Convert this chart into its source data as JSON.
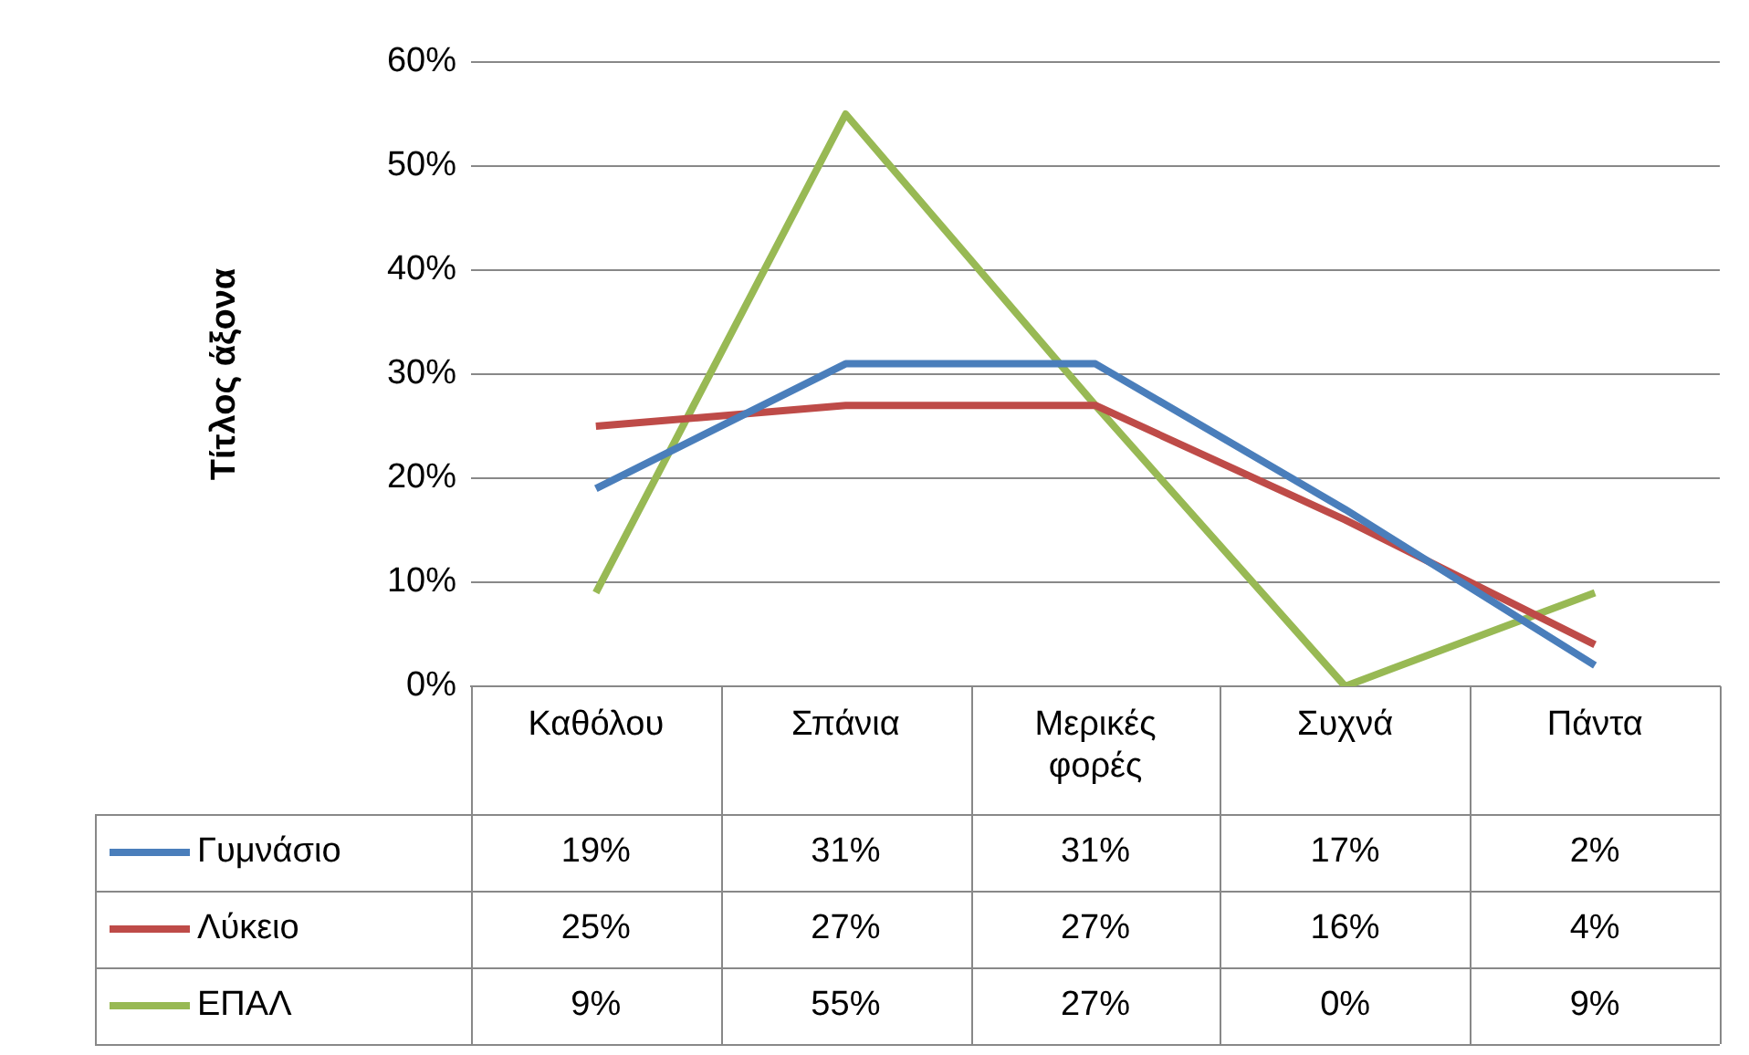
{
  "chart_data": {
    "type": "line",
    "ylabel": "Τίτλος άξονα",
    "categories": [
      "Καθόλου",
      "Σπάνια",
      "Μερικές φορές",
      "Συχνά",
      "Πάντα"
    ],
    "series": [
      {
        "name": "Γυμνάσιο",
        "color": "#4a7ebb",
        "values": [
          19,
          31,
          31,
          17,
          2
        ],
        "value_labels": [
          "19%",
          "31%",
          "31%",
          "17%",
          "2%"
        ]
      },
      {
        "name": "Λύκειο",
        "color": "#be4b48",
        "values": [
          25,
          27,
          27,
          16,
          4
        ],
        "value_labels": [
          "25%",
          "27%",
          "27%",
          "16%",
          "4%"
        ]
      },
      {
        "name": "ΕΠΑΛ",
        "color": "#98b954",
        "values": [
          9,
          55,
          27,
          0,
          9
        ],
        "value_labels": [
          "9%",
          "55%",
          "27%",
          "0%",
          "9%"
        ]
      }
    ],
    "ylim": [
      0,
      60
    ],
    "yticks": [
      {
        "value": 0,
        "label": "0%"
      },
      {
        "value": 10,
        "label": "10%"
      },
      {
        "value": 20,
        "label": "20%"
      },
      {
        "value": 30,
        "label": "30%"
      },
      {
        "value": 40,
        "label": "40%"
      },
      {
        "value": 50,
        "label": "50%"
      },
      {
        "value": 60,
        "label": "60%"
      }
    ],
    "grid": "y",
    "legend": "bottom",
    "marker": "none",
    "line_style": "solid"
  }
}
